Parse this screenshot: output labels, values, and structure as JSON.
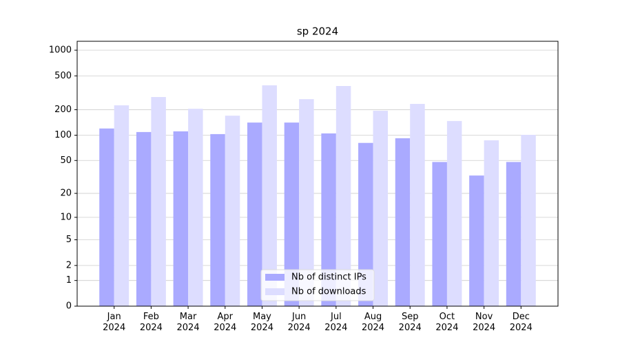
{
  "chart_data": {
    "type": "bar",
    "title": "sp 2024",
    "yscale": "log1p",
    "categories": [
      "Jan 2024",
      "Feb 2024",
      "Mar 2024",
      "Apr 2024",
      "May 2024",
      "Jun 2024",
      "Jul 2024",
      "Aug 2024",
      "Sep 2024",
      "Oct 2024",
      "Nov 2024",
      "Dec 2024"
    ],
    "series": [
      {
        "name": "Nb of distinct IPs",
        "color": "#aaaaff",
        "values": [
          120,
          109,
          111,
          103,
          141,
          141,
          105,
          81,
          92,
          48,
          33,
          48
        ]
      },
      {
        "name": "Nb of downloads",
        "color": "#ddddff",
        "values": [
          225,
          282,
          205,
          170,
          387,
          266,
          380,
          194,
          234,
          147,
          87,
          101
        ]
      }
    ],
    "ylim": [
      0,
      1273
    ],
    "yticks": [
      0,
      1,
      2,
      5,
      10,
      20,
      50,
      100,
      200,
      500,
      1000
    ],
    "grid": true,
    "legend": "lower center"
  }
}
